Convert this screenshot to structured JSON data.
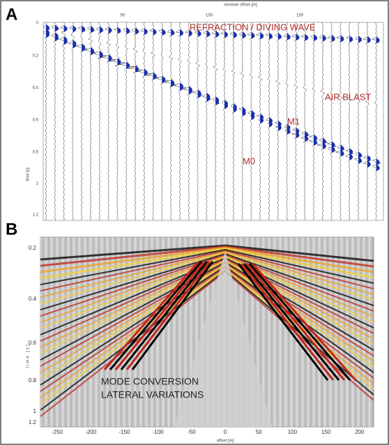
{
  "panel_a": {
    "label": "A",
    "axis_top_label": "receiver offset [m]",
    "top_ticks": [
      "50",
      "100",
      "150"
    ],
    "axis_left_label": "time [s]",
    "left_ticks": [
      "0",
      "0.2",
      "0.4",
      "0.6",
      "0.8",
      "1",
      "1.2"
    ],
    "annotations": [
      "REFRACTION / DIVING WAVE",
      "AIR BLAST",
      "M1",
      "M0"
    ]
  },
  "panel_b": {
    "label": "B",
    "axis_left_label": "time [s]",
    "left_ticks": [
      "0.2",
      "0.4",
      "0.6",
      "0.8",
      "1",
      "1.2"
    ],
    "axis_bottom_label": "offset [m]",
    "bottom_ticks": [
      "-250",
      "-200",
      "-150",
      "-100",
      "-50",
      "0",
      "50",
      "100",
      "150",
      "200"
    ],
    "annotation_lines": [
      "MODE CONVERSION",
      "LATERAL VARIATIONS"
    ]
  }
}
